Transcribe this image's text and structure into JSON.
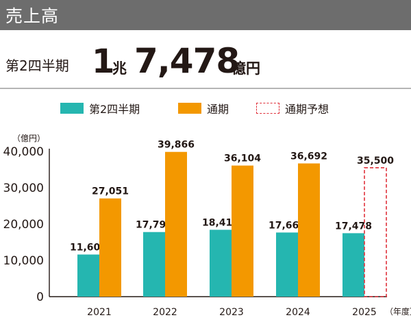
{
  "header": {
    "title": "売上高"
  },
  "headline": {
    "period_label": "第2四半期",
    "value_part1": "1",
    "unit_part1": "兆",
    "value_part2": "7,478",
    "unit_part2": "億円"
  },
  "legend": {
    "items": [
      {
        "label": "第2四半期",
        "style": "fill",
        "color": "#25b6b0"
      },
      {
        "label": "通期",
        "style": "fill",
        "color": "#f39800"
      },
      {
        "label": "通期予想",
        "style": "dashed",
        "color": "#e0303a"
      }
    ]
  },
  "chart_data": {
    "type": "bar",
    "y_unit_label": "（億円）",
    "x_unit_label": "（年度）",
    "ylim": [
      0,
      40000
    ],
    "y_ticks": [
      0,
      10000,
      20000,
      30000,
      40000
    ],
    "y_tick_labels": [
      "0",
      "10,000",
      "20,000",
      "30,000",
      "40,000"
    ],
    "grid": false,
    "categories": [
      "2021",
      "2022",
      "2023",
      "2024",
      "2025"
    ],
    "series": [
      {
        "name": "第2四半期",
        "color": "#25b6b0",
        "style": "fill",
        "values": [
          11604,
          17792,
          18415,
          17664,
          17478
        ],
        "labels": [
          "11,604",
          "17,792",
          "18,415",
          "17,664",
          "17,478"
        ]
      },
      {
        "name": "通期",
        "color": "#f39800",
        "style": "fill",
        "values": [
          27051,
          39866,
          36104,
          36692,
          null
        ],
        "labels": [
          "27,051",
          "39,866",
          "36,104",
          "36,692",
          ""
        ]
      },
      {
        "name": "通期予想",
        "color": "#e0303a",
        "style": "dashed",
        "values": [
          null,
          null,
          null,
          null,
          35500
        ],
        "labels": [
          "",
          "",
          "",
          "",
          "35,500"
        ]
      }
    ]
  }
}
